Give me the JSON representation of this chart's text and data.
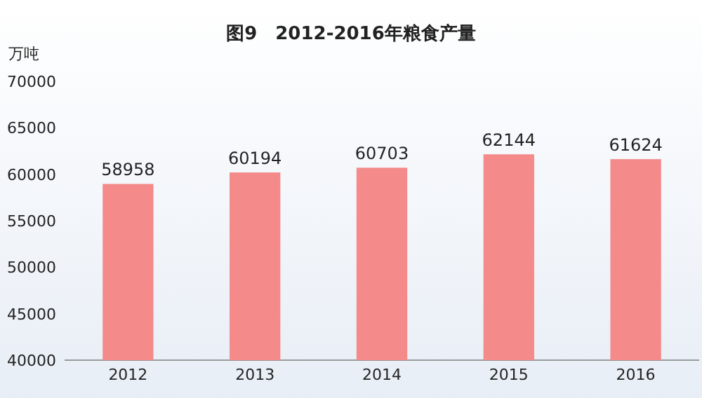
{
  "chart_data": {
    "type": "bar",
    "title": "图9　2012-2016年粮食产量",
    "ylabel": "万吨",
    "categories": [
      "2012",
      "2013",
      "2014",
      "2015",
      "2016"
    ],
    "values": [
      58958,
      60194,
      60703,
      62144,
      61624
    ],
    "color": "#f48a8a",
    "ylim": [
      40000,
      70000
    ],
    "yticks": [
      40000,
      45000,
      50000,
      55000,
      60000,
      65000,
      70000
    ],
    "data_labels": true
  }
}
